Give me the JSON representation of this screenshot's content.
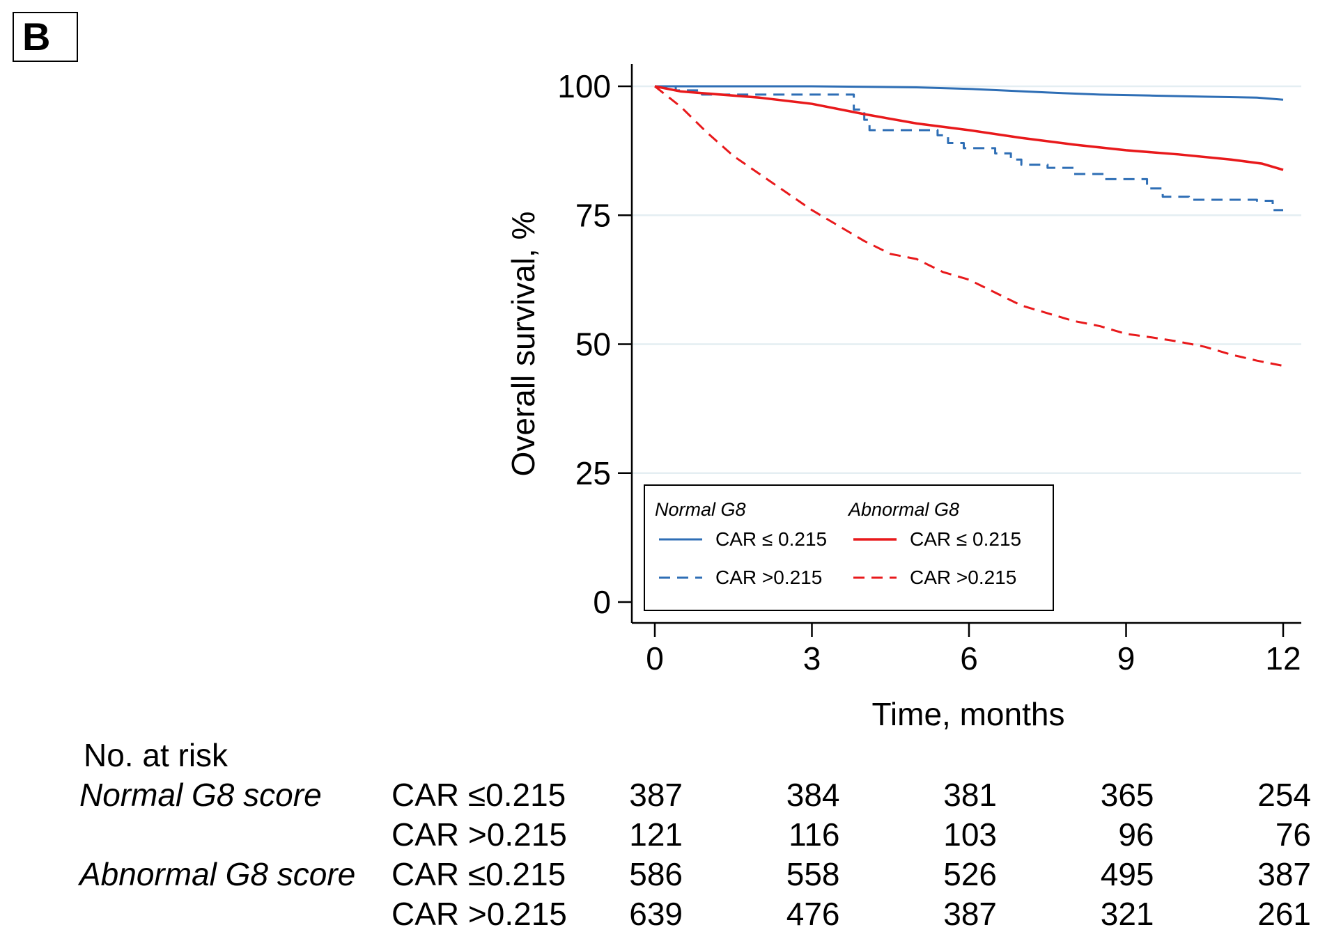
{
  "panel_label": "B",
  "chart_data": {
    "type": "line",
    "ylabel": "Overall survival, %",
    "xlabel": "Time, months",
    "xlim": [
      0,
      12
    ],
    "ylim": [
      0,
      100
    ],
    "x_ticks": [
      "0",
      "3",
      "6",
      "9",
      "12"
    ],
    "y_ticks": [
      "0",
      "25",
      "50",
      "75",
      "100"
    ],
    "grid_y": [
      25,
      50,
      75,
      100
    ],
    "legend": {
      "placement": "lower-center",
      "group_titles": [
        "Normal G8",
        "Abnormal G8"
      ],
      "entries": [
        {
          "group": "Normal G8",
          "label": "CAR ≤ 0.215",
          "color": "#2e6eb5",
          "style": "solid"
        },
        {
          "group": "Normal G8",
          "label": "CAR >0.215",
          "color": "#2e6eb5",
          "style": "dashed"
        },
        {
          "group": "Abnormal G8",
          "label": "CAR ≤ 0.215",
          "color": "#e8191b",
          "style": "solid"
        },
        {
          "group": "Abnormal G8",
          "label": "CAR >0.215",
          "color": "#e8191b",
          "style": "dashed"
        }
      ]
    },
    "series": [
      {
        "name": "Normal G8, CAR ≤0.215",
        "color": "#2e6eb5",
        "style": "solid",
        "points": [
          [
            0,
            100
          ],
          [
            1,
            100
          ],
          [
            3,
            100
          ],
          [
            5,
            99.8
          ],
          [
            6,
            99.5
          ],
          [
            7.5,
            98.8
          ],
          [
            8.5,
            98.4
          ],
          [
            9.5,
            98.2
          ],
          [
            10.5,
            98
          ],
          [
            11.5,
            97.8
          ],
          [
            12,
            97.4
          ]
        ]
      },
      {
        "name": "Normal G8, CAR >0.215",
        "color": "#2e6eb5",
        "style": "dashed",
        "step": true,
        "points": [
          [
            0,
            100
          ],
          [
            0.4,
            99.2
          ],
          [
            0.9,
            98.4
          ],
          [
            3.6,
            98.4
          ],
          [
            3.8,
            95.5
          ],
          [
            4.0,
            93.5
          ],
          [
            4.1,
            91.5
          ],
          [
            5.2,
            91.5
          ],
          [
            5.4,
            90.5
          ],
          [
            5.6,
            89
          ],
          [
            5.9,
            88
          ],
          [
            6.5,
            87
          ],
          [
            6.8,
            85.8
          ],
          [
            7.0,
            84.8
          ],
          [
            7.5,
            84.2
          ],
          [
            8.0,
            83
          ],
          [
            8.6,
            82
          ],
          [
            9.2,
            82
          ],
          [
            9.4,
            80.2
          ],
          [
            9.7,
            78.6
          ],
          [
            10.2,
            78
          ],
          [
            11.5,
            77.8
          ],
          [
            11.8,
            76
          ],
          [
            12,
            76
          ]
        ]
      },
      {
        "name": "Abnormal G8, CAR ≤0.215",
        "color": "#e8191b",
        "style": "solid",
        "points": [
          [
            0,
            100
          ],
          [
            0.5,
            99
          ],
          [
            1,
            98.6
          ],
          [
            2,
            97.8
          ],
          [
            3,
            96.6
          ],
          [
            4,
            94.6
          ],
          [
            5,
            92.8
          ],
          [
            6,
            91.5
          ],
          [
            7,
            90
          ],
          [
            8,
            88.7
          ],
          [
            9,
            87.6
          ],
          [
            10,
            86.8
          ],
          [
            11,
            85.8
          ],
          [
            11.6,
            85
          ],
          [
            12,
            83.8
          ]
        ]
      },
      {
        "name": "Abnormal G8, CAR >0.215",
        "color": "#e8191b",
        "style": "dashed",
        "points": [
          [
            0,
            100
          ],
          [
            0.5,
            96
          ],
          [
            1,
            91
          ],
          [
            1.5,
            86.5
          ],
          [
            2,
            83
          ],
          [
            2.5,
            79.5
          ],
          [
            3,
            76
          ],
          [
            3.5,
            73
          ],
          [
            4,
            70
          ],
          [
            4.5,
            67.5
          ],
          [
            5,
            66.5
          ],
          [
            5.5,
            64
          ],
          [
            6,
            62.5
          ],
          [
            6.5,
            60
          ],
          [
            7,
            57.5
          ],
          [
            7.5,
            56
          ],
          [
            8,
            54.5
          ],
          [
            8.5,
            53.5
          ],
          [
            9,
            52
          ],
          [
            9.5,
            51.3
          ],
          [
            10,
            50.5
          ],
          [
            10.5,
            49.5
          ],
          [
            11,
            48
          ],
          [
            11.5,
            46.8
          ],
          [
            12,
            45.8
          ]
        ]
      }
    ]
  },
  "risk_table": {
    "title": "No. at risk",
    "rows": [
      {
        "group": "Normal G8 score",
        "car": "CAR ≤0.215",
        "values": [
          "387",
          "384",
          "381",
          "365",
          "254"
        ]
      },
      {
        "group": "",
        "car": "CAR >0.215",
        "values": [
          "121",
          "116",
          "103",
          "96",
          "76"
        ]
      },
      {
        "group": "Abnormal G8 score",
        "car": "CAR ≤0.215",
        "values": [
          "586",
          "558",
          "526",
          "495",
          "387"
        ]
      },
      {
        "group": "",
        "car": "CAR >0.215",
        "values": [
          "639",
          "476",
          "387",
          "321",
          "261"
        ]
      }
    ]
  }
}
